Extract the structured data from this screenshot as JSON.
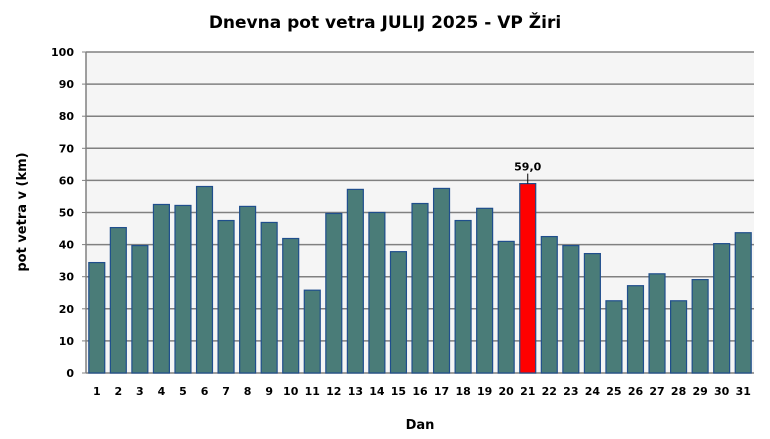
{
  "chart_data": {
    "type": "bar",
    "title": "Dnevna pot vetra JULIJ 2025 - VP Žiri",
    "xlabel": "Dan",
    "ylabel": "pot vetra  v (km)",
    "ylim": [
      0,
      100
    ],
    "yticks": [
      "0",
      "10",
      "20",
      "30",
      "40",
      "50",
      "60",
      "70",
      "80",
      "90",
      "100"
    ],
    "grid": true,
    "categories": [
      "1",
      "2",
      "3",
      "4",
      "5",
      "6",
      "7",
      "8",
      "9",
      "10",
      "11",
      "12",
      "13",
      "14",
      "15",
      "16",
      "17",
      "18",
      "19",
      "20",
      "21",
      "22",
      "23",
      "24",
      "25",
      "26",
      "27",
      "28",
      "29",
      "30",
      "31"
    ],
    "values": [
      34.4,
      45.3,
      39.7,
      52.5,
      52.2,
      58.1,
      47.5,
      51.9,
      46.9,
      41.9,
      25.8,
      49.7,
      57.2,
      50.0,
      37.8,
      52.8,
      57.5,
      47.5,
      51.3,
      41.0,
      59.0,
      42.5,
      39.7,
      37.2,
      22.5,
      27.2,
      30.9,
      22.5,
      29.1,
      40.3,
      43.7
    ],
    "highlight": {
      "index": 20,
      "label": "59,0"
    },
    "colors": {
      "bar": "#4a7c78",
      "bar_edge": "#1f4e8c",
      "highlight": "#ff0000",
      "plot_bg": "#f5f5f5",
      "grid": "#808080"
    }
  }
}
